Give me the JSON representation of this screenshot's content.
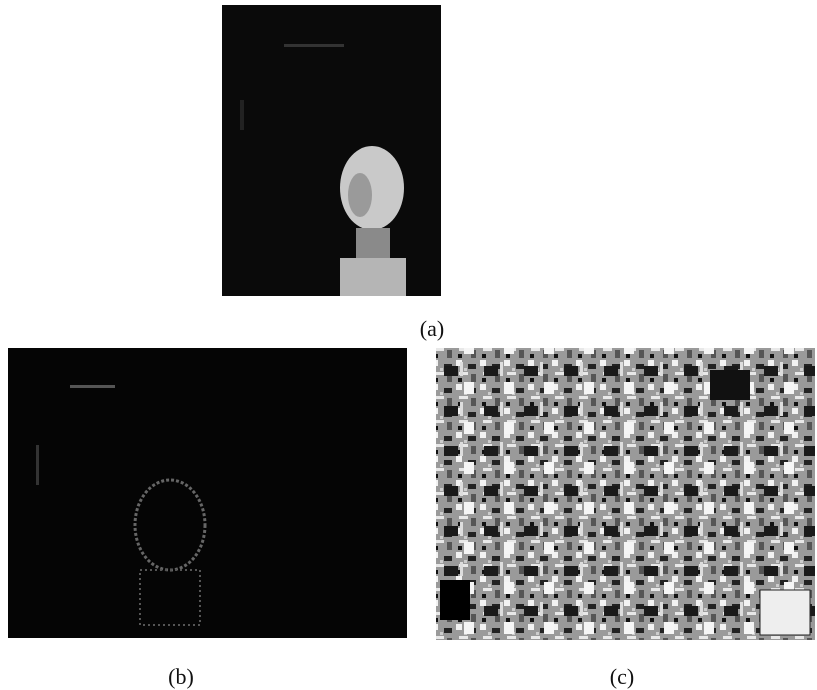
{
  "figure": {
    "captions": {
      "a": "(a)",
      "b": "(b)",
      "c": "(c)"
    }
  }
}
